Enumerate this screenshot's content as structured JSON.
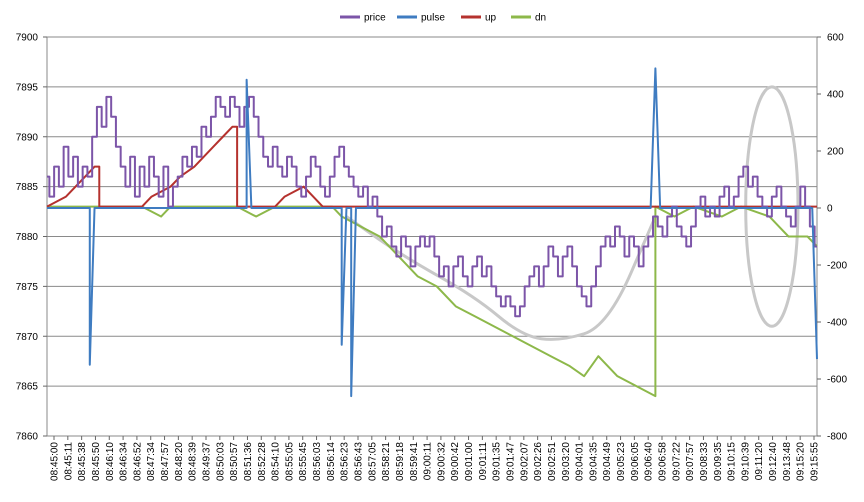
{
  "chart_data": {
    "type": "line",
    "legend": {
      "position": "top",
      "entries": [
        {
          "name": "price",
          "color": "#7C55A8"
        },
        {
          "name": "pulse",
          "color": "#3F7CC1"
        },
        {
          "name": "up",
          "color": "#B5322E"
        },
        {
          "name": "dn",
          "color": "#8DB84A"
        }
      ]
    },
    "grid": true,
    "y_left": {
      "min": 7860,
      "max": 7900,
      "ticks": [
        "7860",
        "7865",
        "7870",
        "7875",
        "7880",
        "7885",
        "7890",
        "7895",
        "7900"
      ]
    },
    "y_right": {
      "min": -800,
      "max": 600,
      "ticks": [
        "-800",
        "-600",
        "-400",
        "-200",
        "0",
        "200",
        "400",
        "600"
      ]
    },
    "x_labels": [
      "08:45:00",
      "08:45:11",
      "08:45:38",
      "08:45:50",
      "08:46:10",
      "08:46:34",
      "08:46:52",
      "08:47:34",
      "08:47:57",
      "08:48:20",
      "08:48:39",
      "08:49:37",
      "08:50:03",
      "08:50:57",
      "08:51:36",
      "08:52:28",
      "08:54:10",
      "08:55:05",
      "08:55:45",
      "08:56:03",
      "08:56:14",
      "08:56:23",
      "08:56:43",
      "08:57:05",
      "08:58:21",
      "08:59:18",
      "08:59:41",
      "09:00:11",
      "09:00:32",
      "09:00:42",
      "09:01:00",
      "09:01:11",
      "09:01:35",
      "09:01:47",
      "09:02:07",
      "09:02:26",
      "09:02:51",
      "09:03:20",
      "09:04:01",
      "09:04:35",
      "09:04:49",
      "09:05:23",
      "09:06:05",
      "09:06:40",
      "09:06:58",
      "09:07:22",
      "09:07:57",
      "09:08:33",
      "09:09:35",
      "09:10:15",
      "09:10:39",
      "09:11:20",
      "09:12:40",
      "09:13:48",
      "09:15:20",
      "09:15:55"
    ],
    "series": [
      {
        "name": "price",
        "axis": "left",
        "color": "#7C55A8",
        "points": [
          [
            0,
            7886
          ],
          [
            1,
            7884
          ],
          [
            2,
            7887
          ],
          [
            3,
            7885
          ],
          [
            4,
            7889
          ],
          [
            5,
            7886
          ],
          [
            6,
            7888
          ],
          [
            7,
            7885
          ],
          [
            8,
            7887
          ],
          [
            9,
            7886
          ],
          [
            10,
            7890
          ],
          [
            11,
            7893
          ],
          [
            12,
            7891
          ],
          [
            13,
            7894
          ],
          [
            14,
            7892
          ],
          [
            15,
            7889
          ],
          [
            16,
            7887
          ],
          [
            17,
            7885
          ],
          [
            18,
            7888
          ],
          [
            19,
            7884
          ],
          [
            20,
            7887
          ],
          [
            21,
            7885
          ],
          [
            22,
            7888
          ],
          [
            23,
            7886
          ],
          [
            24,
            7884
          ],
          [
            25,
            7887
          ],
          [
            26,
            7883
          ],
          [
            27,
            7885
          ],
          [
            28,
            7886
          ],
          [
            29,
            7888
          ],
          [
            30,
            7887
          ],
          [
            31,
            7889
          ],
          [
            32,
            7888
          ],
          [
            33,
            7891
          ],
          [
            34,
            7890
          ],
          [
            35,
            7892
          ],
          [
            36,
            7894
          ],
          [
            37,
            7893
          ],
          [
            38,
            7892
          ],
          [
            39,
            7894
          ],
          [
            40,
            7893
          ],
          [
            41,
            7891
          ],
          [
            42,
            7893
          ],
          [
            43,
            7894
          ],
          [
            44,
            7892
          ],
          [
            45,
            7890
          ],
          [
            46,
            7888
          ],
          [
            47,
            7887
          ],
          [
            48,
            7889
          ],
          [
            49,
            7887
          ],
          [
            50,
            7886
          ],
          [
            51,
            7888
          ],
          [
            52,
            7887
          ],
          [
            53,
            7885
          ],
          [
            54,
            7884
          ],
          [
            55,
            7886
          ],
          [
            56,
            7888
          ],
          [
            57,
            7887
          ],
          [
            58,
            7885
          ],
          [
            59,
            7884
          ],
          [
            60,
            7886
          ],
          [
            61,
            7888
          ],
          [
            62,
            7889
          ],
          [
            63,
            7887
          ],
          [
            64,
            7886
          ],
          [
            65,
            7885
          ],
          [
            66,
            7884
          ],
          [
            67,
            7885
          ],
          [
            68,
            7883
          ],
          [
            69,
            7884
          ],
          [
            70,
            7882
          ],
          [
            71,
            7880
          ],
          [
            72,
            7881
          ],
          [
            73,
            7879
          ],
          [
            74,
            7878
          ],
          [
            75,
            7880
          ],
          [
            76,
            7879
          ],
          [
            77,
            7877
          ],
          [
            78,
            7879
          ],
          [
            79,
            7880
          ],
          [
            80,
            7879
          ],
          [
            81,
            7880
          ],
          [
            82,
            7878
          ],
          [
            83,
            7876
          ],
          [
            84,
            7877
          ],
          [
            85,
            7875
          ],
          [
            86,
            7877
          ],
          [
            87,
            7878
          ],
          [
            88,
            7876
          ],
          [
            89,
            7875
          ],
          [
            90,
            7877
          ],
          [
            91,
            7878
          ],
          [
            92,
            7876
          ],
          [
            93,
            7877
          ],
          [
            94,
            7875
          ],
          [
            95,
            7874
          ],
          [
            96,
            7873
          ],
          [
            97,
            7874
          ],
          [
            98,
            7873
          ],
          [
            99,
            7872
          ],
          [
            100,
            7873
          ],
          [
            101,
            7875
          ],
          [
            102,
            7876
          ],
          [
            103,
            7877
          ],
          [
            104,
            7875
          ],
          [
            105,
            7877
          ],
          [
            106,
            7879
          ],
          [
            107,
            7878
          ],
          [
            108,
            7876
          ],
          [
            109,
            7878
          ],
          [
            110,
            7879
          ],
          [
            111,
            7877
          ],
          [
            112,
            7875
          ],
          [
            113,
            7874
          ],
          [
            114,
            7873
          ],
          [
            115,
            7875
          ],
          [
            116,
            7877
          ],
          [
            117,
            7879
          ],
          [
            118,
            7880
          ],
          [
            119,
            7879
          ],
          [
            120,
            7881
          ],
          [
            121,
            7880
          ],
          [
            122,
            7878
          ],
          [
            123,
            7880
          ],
          [
            124,
            7879
          ],
          [
            125,
            7877
          ],
          [
            126,
            7879
          ],
          [
            127,
            7880
          ],
          [
            128,
            7882
          ],
          [
            129,
            7881
          ],
          [
            130,
            7880
          ],
          [
            131,
            7882
          ],
          [
            132,
            7883
          ],
          [
            133,
            7881
          ],
          [
            134,
            7880
          ],
          [
            135,
            7879
          ],
          [
            136,
            7881
          ],
          [
            137,
            7883
          ],
          [
            138,
            7884
          ],
          [
            139,
            7882
          ],
          [
            140,
            7883
          ],
          [
            141,
            7882
          ],
          [
            142,
            7884
          ],
          [
            143,
            7885
          ],
          [
            144,
            7883
          ],
          [
            145,
            7884
          ],
          [
            146,
            7886
          ],
          [
            147,
            7887
          ],
          [
            148,
            7885
          ],
          [
            149,
            7886
          ],
          [
            150,
            7884
          ],
          [
            151,
            7883
          ],
          [
            152,
            7882
          ],
          [
            153,
            7884
          ],
          [
            154,
            7885
          ],
          [
            155,
            7883
          ],
          [
            156,
            7882
          ],
          [
            157,
            7881
          ],
          [
            158,
            7883
          ],
          [
            159,
            7885
          ],
          [
            160,
            7883
          ],
          [
            161,
            7881
          ],
          [
            162,
            7879
          ]
        ]
      },
      {
        "name": "up",
        "axis": "left",
        "color": "#B5322E",
        "points": [
          [
            0,
            7883
          ],
          [
            4,
            7884
          ],
          [
            8,
            7886
          ],
          [
            10,
            7887
          ],
          [
            11,
            7887
          ],
          [
            11,
            7883
          ],
          [
            20,
            7883
          ],
          [
            22,
            7884
          ],
          [
            26,
            7885
          ],
          [
            28,
            7886
          ],
          [
            31,
            7887
          ],
          [
            33,
            7888
          ],
          [
            35,
            7889
          ],
          [
            37,
            7890
          ],
          [
            39,
            7891
          ],
          [
            40,
            7891
          ],
          [
            40,
            7883
          ],
          [
            48,
            7883
          ],
          [
            50,
            7884
          ],
          [
            54,
            7885
          ],
          [
            56,
            7884
          ],
          [
            58,
            7883
          ],
          [
            60,
            7883
          ],
          [
            162,
            7883
          ]
        ]
      },
      {
        "name": "dn",
        "axis": "left",
        "color": "#8DB84A",
        "points": [
          [
            0,
            7883
          ],
          [
            20,
            7883
          ],
          [
            24,
            7882
          ],
          [
            26,
            7883
          ],
          [
            40,
            7883
          ],
          [
            44,
            7882
          ],
          [
            48,
            7883
          ],
          [
            60,
            7883
          ],
          [
            62,
            7882
          ],
          [
            66,
            7881
          ],
          [
            70,
            7880
          ],
          [
            74,
            7878
          ],
          [
            78,
            7876
          ],
          [
            82,
            7875
          ],
          [
            86,
            7873
          ],
          [
            90,
            7872
          ],
          [
            94,
            7871
          ],
          [
            98,
            7870
          ],
          [
            102,
            7869
          ],
          [
            106,
            7868
          ],
          [
            110,
            7867
          ],
          [
            113,
            7866
          ],
          [
            116,
            7868
          ],
          [
            118,
            7867
          ],
          [
            120,
            7866
          ],
          [
            124,
            7865
          ],
          [
            128,
            7864
          ],
          [
            128,
            7883
          ],
          [
            132,
            7882
          ],
          [
            136,
            7883
          ],
          [
            142,
            7882
          ],
          [
            146,
            7883
          ],
          [
            152,
            7882
          ],
          [
            154,
            7881
          ],
          [
            156,
            7880
          ],
          [
            158,
            7880
          ],
          [
            160,
            7880
          ],
          [
            162,
            7879
          ]
        ]
      },
      {
        "name": "pulse",
        "axis": "right",
        "color": "#3F7CC1",
        "points": [
          [
            0,
            0
          ],
          [
            9,
            0
          ],
          [
            9,
            -550
          ],
          [
            10,
            0
          ],
          [
            42,
            0
          ],
          [
            42,
            450
          ],
          [
            43,
            0
          ],
          [
            62,
            0
          ],
          [
            62,
            -480
          ],
          [
            63,
            0
          ],
          [
            64,
            0
          ],
          [
            64,
            -660
          ],
          [
            65,
            0
          ],
          [
            127,
            0
          ],
          [
            128,
            490
          ],
          [
            129,
            0
          ],
          [
            161,
            0
          ],
          [
            162,
            -530
          ]
        ]
      }
    ],
    "x_count": 162,
    "annotations": [
      {
        "type": "arc",
        "description": "gray U-shaped curve",
        "points": [
          [
            63,
            7882
          ],
          [
            75,
            7878
          ],
          [
            90,
            7874
          ],
          [
            100,
            7870
          ],
          [
            108,
            7869.5
          ],
          [
            118,
            7871
          ],
          [
            128,
            7882
          ]
        ]
      },
      {
        "type": "ellipse",
        "description": "gray ellipse",
        "cx": 152.5,
        "cy": 7883,
        "rx": 5.5,
        "ry": 12
      }
    ]
  }
}
